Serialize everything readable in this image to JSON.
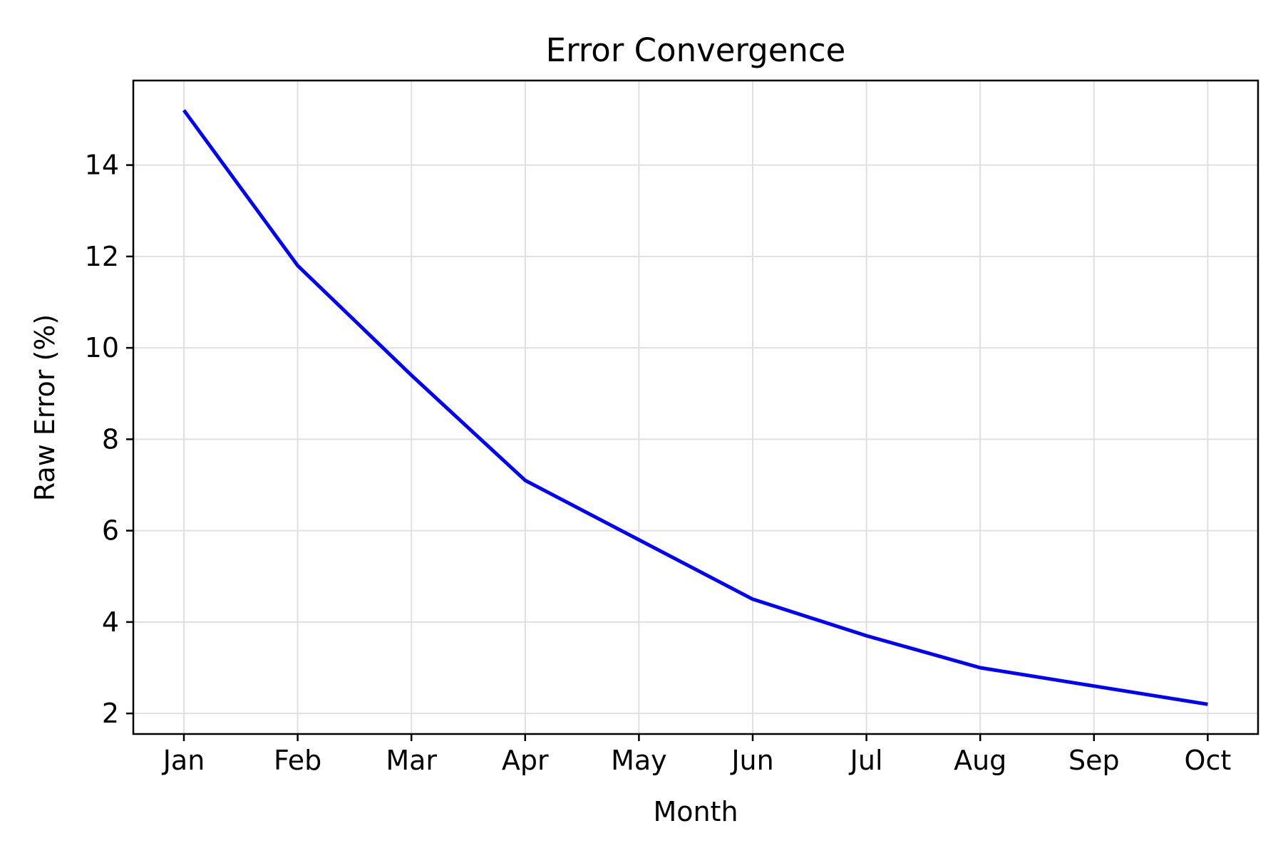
{
  "chart_data": {
    "type": "line",
    "title": "Error Convergence",
    "xlabel": "Month",
    "ylabel": "Raw Error (%)",
    "categories": [
      "Jan",
      "Feb",
      "Mar",
      "Apr",
      "May",
      "Jun",
      "Jul",
      "Aug",
      "Sep",
      "Oct"
    ],
    "series": [
      {
        "values": [
          15.2,
          11.8,
          9.4,
          7.1,
          5.8,
          4.5,
          3.7,
          3.0,
          2.6,
          2.2
        ],
        "color": "#0000ff"
      }
    ],
    "ylim": [
      1.55,
      15.85
    ],
    "yticks": [
      2,
      4,
      6,
      8,
      10,
      12,
      14
    ],
    "grid": true,
    "legend": "none"
  }
}
